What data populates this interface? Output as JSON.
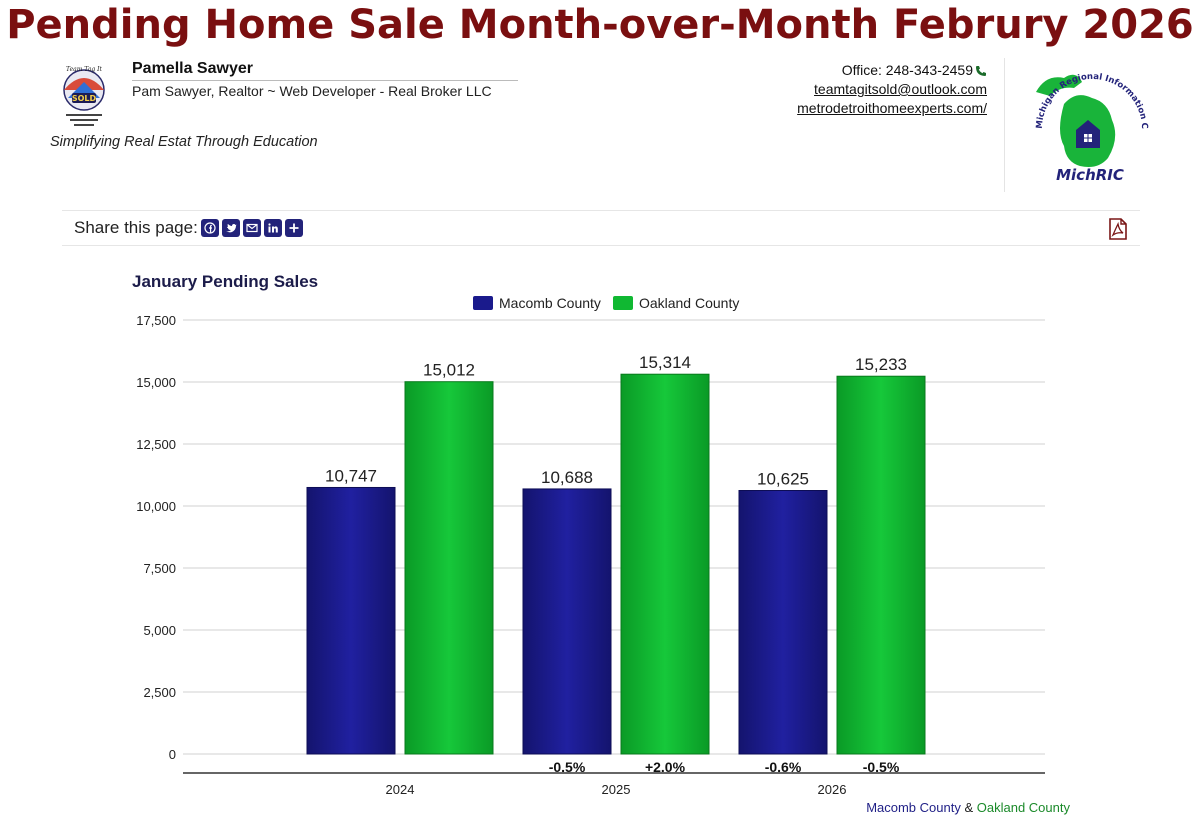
{
  "page": {
    "title": "Pending Home Sale Month-over-Month Februry 2026"
  },
  "agent": {
    "name": "Pamella Sawyer",
    "subtitle": "Pam Sawyer, Realtor ~ Web Developer - Real Broker LLC",
    "tagline": "Simplifying Real Estat Through Education",
    "logo_text": "SOLD",
    "logo_top_text": "Team Tag It",
    "office": "Office: 248-343-2459",
    "email": "teamtagitsold@outlook.com",
    "website": "metrodetroithomeexperts.com/"
  },
  "michric": {
    "label": "MichRIC",
    "arc_text": "Michigan Regional Information Center"
  },
  "share": {
    "label": "Share this page:",
    "buttons": [
      "facebook-icon",
      "twitter-icon",
      "email-icon",
      "linkedin-icon",
      "plus-icon"
    ]
  },
  "colors": {
    "macomb": "#1a1a8c",
    "oakland": "#10b832",
    "title": "#7a0f10"
  },
  "chart_data": {
    "type": "bar",
    "title": "January Pending Sales",
    "categories": [
      "2024",
      "2025",
      "2026"
    ],
    "series": [
      {
        "name": "Macomb County",
        "values": [
          10747,
          10688,
          10625
        ],
        "labels": [
          "10,747",
          "10,688",
          "10,625"
        ],
        "changes": [
          "",
          "-0.5%",
          "-0.6%"
        ]
      },
      {
        "name": "Oakland County",
        "values": [
          15012,
          15314,
          15233
        ],
        "labels": [
          "15,012",
          "15,314",
          "15,233"
        ],
        "changes": [
          "",
          "+2.0%",
          "-0.5%"
        ]
      }
    ],
    "ylim": [
      0,
      17500
    ],
    "yticks": [
      0,
      2500,
      5000,
      7500,
      10000,
      12500,
      15000,
      17500
    ],
    "ytick_labels": [
      "0",
      "2,500",
      "5,000",
      "7,500",
      "10,000",
      "12,500",
      "15,000",
      "17,500"
    ],
    "grid": true,
    "legend_position": "top-center",
    "xlabel": "",
    "ylabel": ""
  },
  "footnote": {
    "macomb": "Macomb County",
    "amp": "&",
    "oakland": "Oakland County"
  }
}
